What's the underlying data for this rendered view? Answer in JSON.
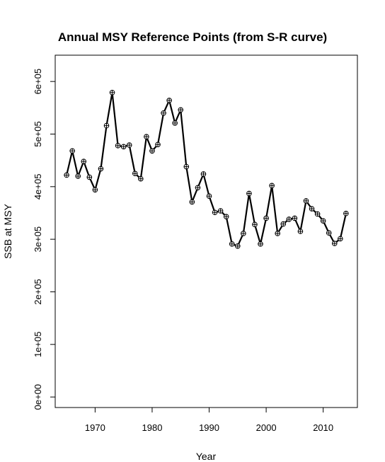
{
  "chart_data": {
    "type": "line",
    "title": "Annual MSY Reference Points (from S-R curve)",
    "xlabel": "Year",
    "ylabel": "SSB at MSY",
    "xlim": [
      1963,
      2016
    ],
    "ylim": [
      -20000,
      650000
    ],
    "x_ticks": [
      1970,
      1980,
      1990,
      2000,
      2010
    ],
    "x_tick_labels": [
      "1970",
      "1980",
      "1990",
      "2000",
      "2010"
    ],
    "y_ticks": [
      0,
      100000,
      200000,
      300000,
      400000,
      500000,
      600000
    ],
    "y_tick_labels": [
      "0e+00",
      "1e+05",
      "2e+05",
      "3e+05",
      "4e+05",
      "5e+05",
      "6e+05"
    ],
    "grid": false,
    "series": [
      {
        "marker": "circle-plus",
        "color": "#000000",
        "x": [
          1965,
          1966,
          1967,
          1968,
          1969,
          1970,
          1971,
          1972,
          1973,
          1974,
          1975,
          1976,
          1977,
          1978,
          1979,
          1980,
          1981,
          1982,
          1983,
          1984,
          1985,
          1986,
          1987,
          1988,
          1989,
          1990,
          1991,
          1992,
          1993,
          1994,
          1995,
          1996,
          1997,
          1998,
          1999,
          2000,
          2001,
          2002,
          2003,
          2004,
          2005,
          2006,
          2007,
          2008,
          2009,
          2010,
          2011,
          2012,
          2013,
          2014
        ],
        "values": [
          422000,
          468000,
          420000,
          448000,
          418000,
          394000,
          434000,
          516000,
          579000,
          478000,
          476000,
          479000,
          425000,
          415000,
          495000,
          468000,
          480000,
          540000,
          564000,
          521000,
          546000,
          438000,
          371000,
          398000,
          424000,
          382000,
          351000,
          354000,
          343000,
          291000,
          287000,
          311000,
          387000,
          328000,
          291000,
          340000,
          402000,
          311000,
          329000,
          338000,
          340000,
          315000,
          373000,
          358000,
          348000,
          335000,
          312000,
          292000,
          301000,
          349000
        ]
      }
    ]
  }
}
